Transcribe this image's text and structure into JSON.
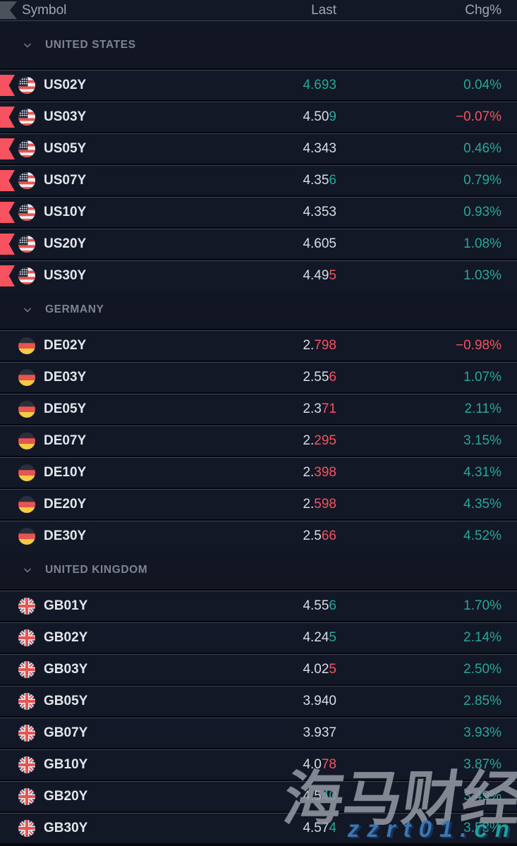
{
  "header": {
    "symbol": "Symbol",
    "last": "Last",
    "chg": "Chg%",
    "flag_column_icon": "flag-icon"
  },
  "colors": {
    "up": "#26a79a",
    "down": "#f7525f",
    "neutral": "#dadde3",
    "flag_marker": "#f7525f"
  },
  "groups": [
    {
      "name": "UNITED STATES",
      "flag": "us",
      "flag_icon": "us-flag-icon",
      "collapse_icon": "chevron-down-icon",
      "flagged_rows": true,
      "rows": [
        {
          "symbol": "US02Y",
          "last_parts": [
            [
              "4.693",
              "up"
            ]
          ],
          "chg": "0.04%",
          "chg_dir": "up"
        },
        {
          "symbol": "US03Y",
          "last_parts": [
            [
              "4.50",
              "n"
            ],
            [
              "9",
              "up"
            ]
          ],
          "chg": "−0.07%",
          "chg_dir": "down"
        },
        {
          "symbol": "US05Y",
          "last_parts": [
            [
              "4.343",
              "n"
            ]
          ],
          "chg": "0.46%",
          "chg_dir": "up"
        },
        {
          "symbol": "US07Y",
          "last_parts": [
            [
              "4.35",
              "n"
            ],
            [
              "6",
              "up"
            ]
          ],
          "chg": "0.79%",
          "chg_dir": "up"
        },
        {
          "symbol": "US10Y",
          "last_parts": [
            [
              "4.353",
              "n"
            ]
          ],
          "chg": "0.93%",
          "chg_dir": "up"
        },
        {
          "symbol": "US20Y",
          "last_parts": [
            [
              "4.605",
              "n"
            ]
          ],
          "chg": "1.08%",
          "chg_dir": "up"
        },
        {
          "symbol": "US30Y",
          "last_parts": [
            [
              "4.49",
              "n"
            ],
            [
              "5",
              "down"
            ]
          ],
          "chg": "1.03%",
          "chg_dir": "up"
        }
      ]
    },
    {
      "name": "GERMANY",
      "flag": "de",
      "flag_icon": "de-flag-icon",
      "collapse_icon": "chevron-down-icon",
      "flagged_rows": false,
      "rows": [
        {
          "symbol": "DE02Y",
          "last_parts": [
            [
              "2.",
              "n"
            ],
            [
              "798",
              "down"
            ]
          ],
          "chg": "−0.98%",
          "chg_dir": "down"
        },
        {
          "symbol": "DE03Y",
          "last_parts": [
            [
              "2.55",
              "n"
            ],
            [
              "6",
              "down"
            ]
          ],
          "chg": "1.07%",
          "chg_dir": "up"
        },
        {
          "symbol": "DE05Y",
          "last_parts": [
            [
              "2.3",
              "n"
            ],
            [
              "71",
              "down"
            ]
          ],
          "chg": "2.11%",
          "chg_dir": "up"
        },
        {
          "symbol": "DE07Y",
          "last_parts": [
            [
              "2.",
              "n"
            ],
            [
              "295",
              "down"
            ]
          ],
          "chg": "3.15%",
          "chg_dir": "up"
        },
        {
          "symbol": "DE10Y",
          "last_parts": [
            [
              "2.",
              "n"
            ],
            [
              "398",
              "down"
            ]
          ],
          "chg": "4.31%",
          "chg_dir": "up"
        },
        {
          "symbol": "DE20Y",
          "last_parts": [
            [
              "2.",
              "n"
            ],
            [
              "598",
              "down"
            ]
          ],
          "chg": "4.35%",
          "chg_dir": "up"
        },
        {
          "symbol": "DE30Y",
          "last_parts": [
            [
              "2.5",
              "n"
            ],
            [
              "66",
              "down"
            ]
          ],
          "chg": "4.52%",
          "chg_dir": "up"
        }
      ]
    },
    {
      "name": "UNITED KINGDOM",
      "flag": "gb",
      "flag_icon": "gb-flag-icon",
      "collapse_icon": "chevron-down-icon",
      "flagged_rows": false,
      "rows": [
        {
          "symbol": "GB01Y",
          "last_parts": [
            [
              "4.55",
              "n"
            ],
            [
              "6",
              "up"
            ]
          ],
          "chg": "1.70%",
          "chg_dir": "up"
        },
        {
          "symbol": "GB02Y",
          "last_parts": [
            [
              "4.24",
              "n"
            ],
            [
              "5",
              "up"
            ]
          ],
          "chg": "2.14%",
          "chg_dir": "up"
        },
        {
          "symbol": "GB03Y",
          "last_parts": [
            [
              "4.02",
              "n"
            ],
            [
              "5",
              "down"
            ]
          ],
          "chg": "2.50%",
          "chg_dir": "up"
        },
        {
          "symbol": "GB05Y",
          "last_parts": [
            [
              "3.940",
              "n"
            ]
          ],
          "chg": "2.85%",
          "chg_dir": "up"
        },
        {
          "symbol": "GB07Y",
          "last_parts": [
            [
              "3.937",
              "n"
            ]
          ],
          "chg": "3.93%",
          "chg_dir": "up"
        },
        {
          "symbol": "GB10Y",
          "last_parts": [
            [
              "4.0",
              "n"
            ],
            [
              "78",
              "down"
            ]
          ],
          "chg": "3.87%",
          "chg_dir": "up"
        },
        {
          "symbol": "GB20Y",
          "last_parts": [
            [
              "4.5",
              "n"
            ],
            [
              "40",
              "up"
            ]
          ],
          "chg": "3.49%",
          "chg_dir": "up"
        },
        {
          "symbol": "GB30Y",
          "last_parts": [
            [
              "4.57",
              "n"
            ],
            [
              "4",
              "up"
            ]
          ],
          "chg": "3.53%",
          "chg_dir": "up"
        }
      ]
    }
  ],
  "watermark": {
    "brand": "海马财经",
    "url_blue": "zzrt01.",
    "url_teal": "cn"
  }
}
